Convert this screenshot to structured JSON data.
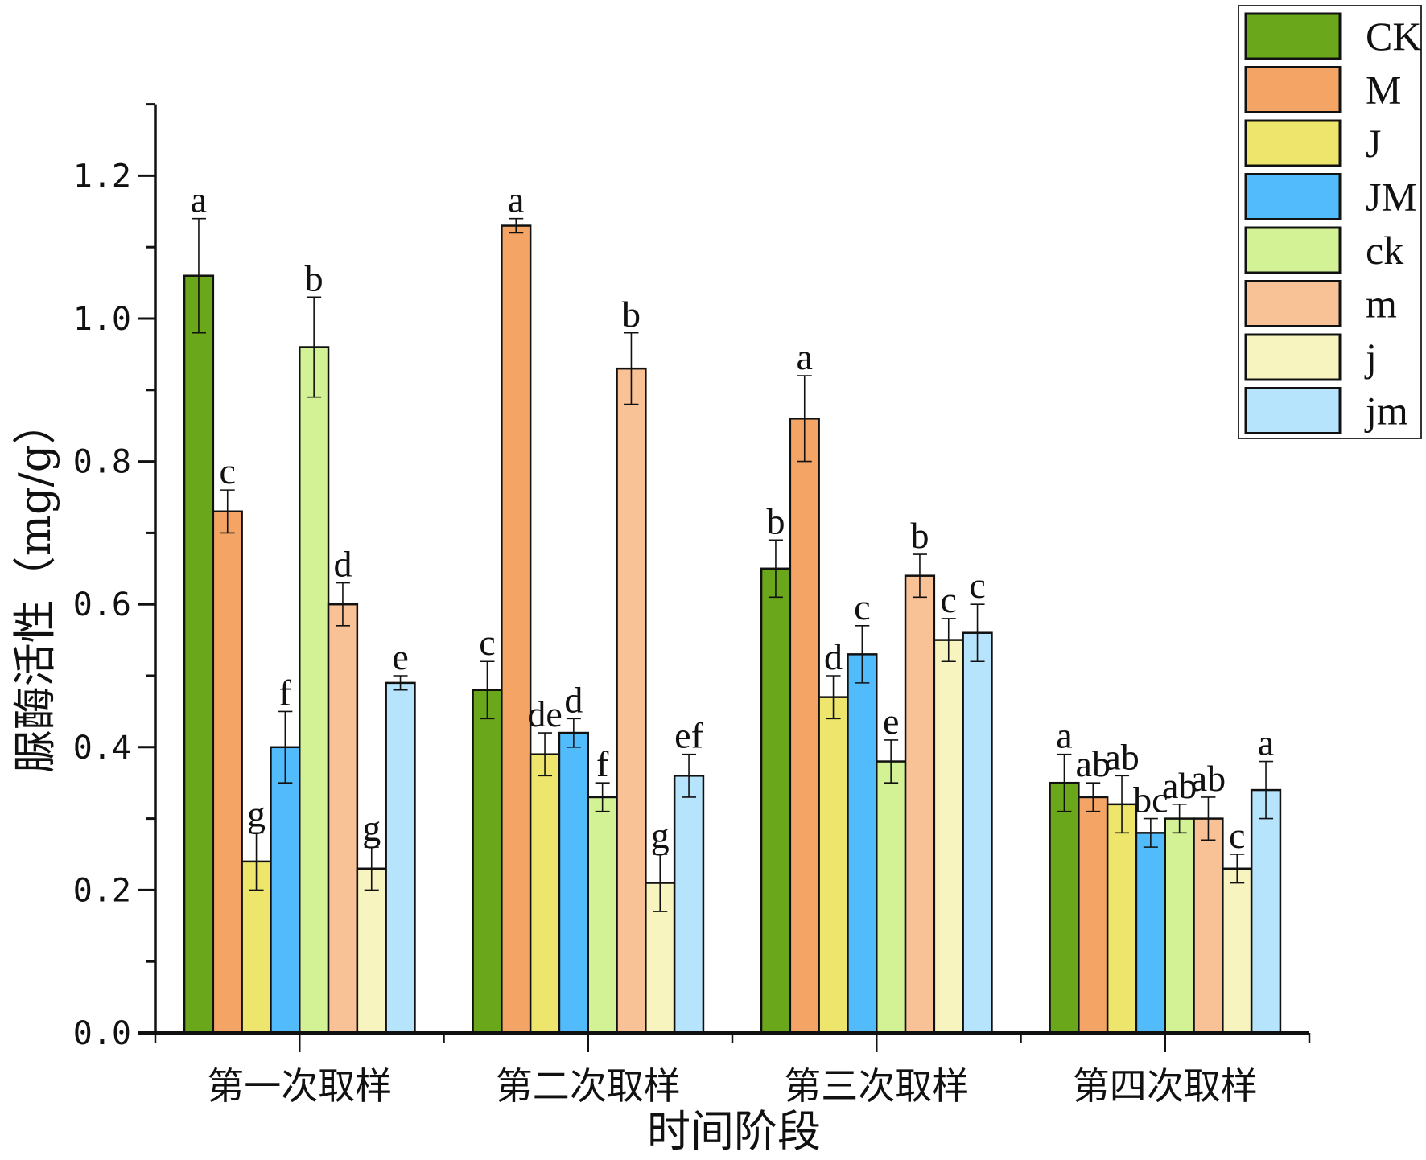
{
  "chart_data": {
    "type": "bar",
    "xlabel": "时间阶段",
    "ylabel": "脲酶活性（mg/g）",
    "ylim": [
      0,
      1.3
    ],
    "yticks": [
      "0.0",
      "0.2",
      "0.4",
      "0.6",
      "0.8",
      "1.0",
      "1.2"
    ],
    "grid": false,
    "legend_position": "top-right",
    "categories": [
      "第一次取样",
      "第二次取样",
      "第三次取样",
      "第四次取样"
    ],
    "series": [
      {
        "name": "CK",
        "color": "#6aa71a",
        "values": [
          1.06,
          0.48,
          0.65,
          0.35
        ],
        "errors": [
          0.08,
          0.04,
          0.04,
          0.04
        ],
        "letters": [
          "a",
          "c",
          "b",
          "a"
        ]
      },
      {
        "name": "M",
        "color": "#f4a566",
        "values": [
          0.73,
          1.13,
          0.86,
          0.33
        ],
        "errors": [
          0.03,
          0.01,
          0.06,
          0.02
        ],
        "letters": [
          "c",
          "a",
          "a",
          "ab"
        ]
      },
      {
        "name": "J",
        "color": "#eee66c",
        "values": [
          0.24,
          0.39,
          0.47,
          0.32
        ],
        "errors": [
          0.04,
          0.03,
          0.03,
          0.04
        ],
        "letters": [
          "g",
          "de",
          "d",
          "ab"
        ]
      },
      {
        "name": "JM",
        "color": "#52bbfb",
        "values": [
          0.4,
          0.42,
          0.53,
          0.28
        ],
        "errors": [
          0.05,
          0.02,
          0.04,
          0.02
        ],
        "letters": [
          "f",
          "d",
          "c",
          "bc"
        ]
      },
      {
        "name": "ck",
        "color": "#d3f195",
        "values": [
          0.96,
          0.33,
          0.38,
          0.3
        ],
        "errors": [
          0.07,
          0.02,
          0.03,
          0.02
        ],
        "letters": [
          "b",
          "f",
          "e",
          "ab"
        ]
      },
      {
        "name": "m",
        "color": "#f8c196",
        "values": [
          0.6,
          0.93,
          0.64,
          0.3
        ],
        "errors": [
          0.03,
          0.05,
          0.03,
          0.03
        ],
        "letters": [
          "d",
          "b",
          "b",
          "ab"
        ]
      },
      {
        "name": "j",
        "color": "#f8f4bf",
        "values": [
          0.23,
          0.21,
          0.55,
          0.23
        ],
        "errors": [
          0.03,
          0.04,
          0.03,
          0.02
        ],
        "letters": [
          "g",
          "g",
          "c",
          "c"
        ]
      },
      {
        "name": "jm",
        "color": "#b6e4fd",
        "values": [
          0.49,
          0.36,
          0.56,
          0.34
        ],
        "errors": [
          0.01,
          0.03,
          0.04,
          0.04
        ],
        "letters": [
          "e",
          "ef",
          "c",
          "a"
        ]
      }
    ]
  }
}
